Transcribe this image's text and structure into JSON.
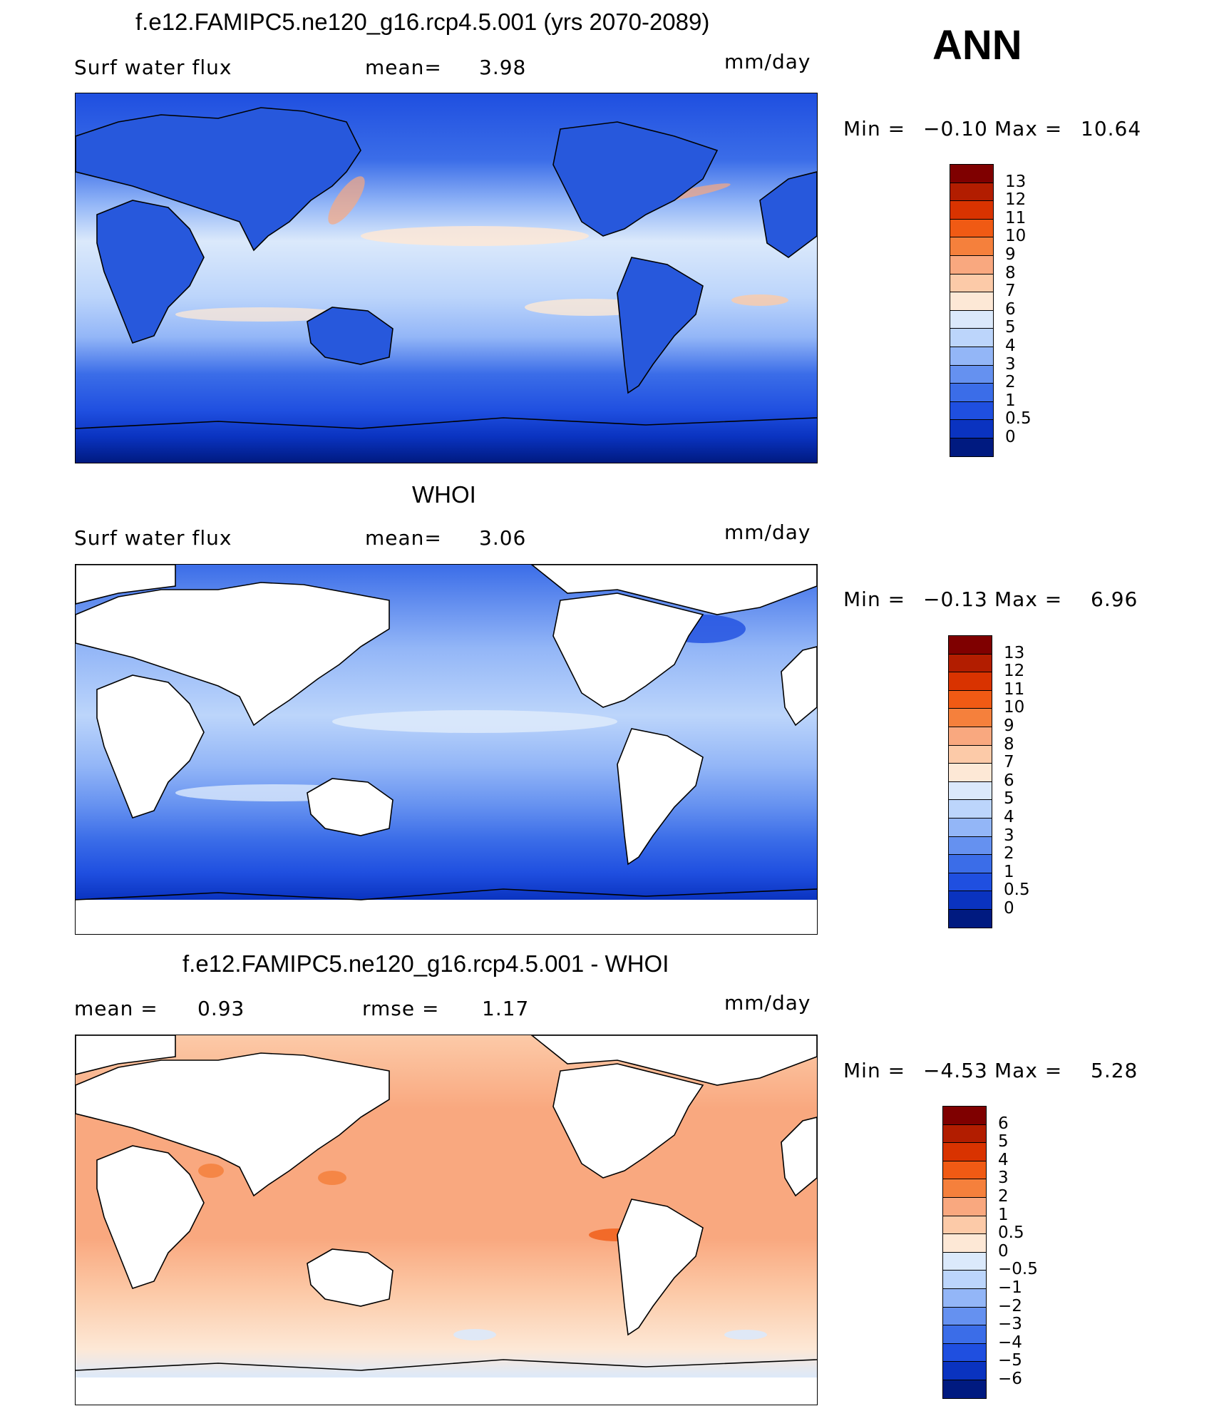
{
  "season": "ANN",
  "colors": {
    "land": "#ffffff",
    "coast": "#000000"
  },
  "panels": [
    {
      "id": "model",
      "title": "f.e12.FAMIPC5.ne120_g16.rcp4.5.001 (yrs 2070-2089)",
      "left_label": "Surf water flux",
      "mid_label": "mean=",
      "mid_value": "3.98",
      "units": "mm/day",
      "minmax": {
        "min_label": "Min =",
        "min_value": "−0.10",
        "max_label": "Max =",
        "max_value": "10.64"
      },
      "colorbar": {
        "ticks": [
          "13",
          "12",
          "11",
          "10",
          "9",
          "8",
          "7",
          "6",
          "5",
          "4",
          "3",
          "2",
          "1",
          "0.5",
          "0"
        ],
        "colors": [
          "#7f0000",
          "#b21d00",
          "#d93300",
          "#f05a14",
          "#f5803c",
          "#f9a87f",
          "#fccaa8",
          "#fde8d6",
          "#dbe9fb",
          "#bcd5fb",
          "#93b6f7",
          "#6591f0",
          "#3b6de8",
          "#1f4fe0",
          "#0a33c0",
          "#001a80"
        ]
      }
    },
    {
      "id": "obs",
      "title": "WHOI",
      "left_label": "Surf water flux",
      "mid_label": "mean=",
      "mid_value": "3.06",
      "units": "mm/day",
      "minmax": {
        "min_label": "Min =",
        "min_value": "−0.13",
        "max_label": "Max =",
        "max_value": "6.96"
      },
      "colorbar": {
        "ticks": [
          "13",
          "12",
          "11",
          "10",
          "9",
          "8",
          "7",
          "6",
          "5",
          "4",
          "3",
          "2",
          "1",
          "0.5",
          "0"
        ],
        "colors": [
          "#7f0000",
          "#b21d00",
          "#d93300",
          "#f05a14",
          "#f5803c",
          "#f9a87f",
          "#fccaa8",
          "#fde8d6",
          "#dbe9fb",
          "#bcd5fb",
          "#93b6f7",
          "#6591f0",
          "#3b6de8",
          "#1f4fe0",
          "#0a33c0",
          "#001a80"
        ]
      }
    },
    {
      "id": "diff",
      "title": "f.e12.FAMIPC5.ne120_g16.rcp4.5.001 - WHOI",
      "left_label": "mean =",
      "left_value": "0.93",
      "mid_label": "rmse =",
      "mid_value": "1.17",
      "units": "mm/day",
      "minmax": {
        "min_label": "Min =",
        "min_value": "−4.53",
        "max_label": "Max =",
        "max_value": "5.28"
      },
      "colorbar": {
        "ticks": [
          "6",
          "5",
          "4",
          "3",
          "2",
          "1",
          "0.5",
          "0",
          "−0.5",
          "−1",
          "−2",
          "−3",
          "−4",
          "−5",
          "−6"
        ],
        "colors": [
          "#7f0000",
          "#b21d00",
          "#d93300",
          "#f05a14",
          "#f5803c",
          "#f9a87f",
          "#fccaa8",
          "#fde8d6",
          "#dbe9fb",
          "#bcd5fb",
          "#93b6f7",
          "#6591f0",
          "#3b6de8",
          "#1f4fe0",
          "#0a33c0",
          "#001a80"
        ]
      }
    }
  ]
}
